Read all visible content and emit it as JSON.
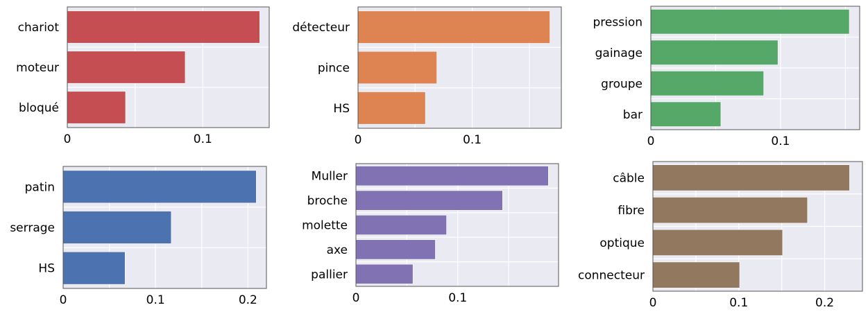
{
  "chart_data": [
    {
      "type": "bar",
      "orientation": "horizontal",
      "color": "#C44E52",
      "categories": [
        "chariot",
        "moteur",
        "bloqué"
      ],
      "values": [
        0.142,
        0.087,
        0.043
      ],
      "xlim": [
        0,
        0.149
      ],
      "xticks": [
        {
          "value": 0,
          "label": "0"
        },
        {
          "value": 0.1,
          "label": "0.1"
        }
      ],
      "grid": true
    },
    {
      "type": "bar",
      "orientation": "horizontal",
      "color": "#DD8452",
      "categories": [
        "détecteur",
        "pince",
        "HS"
      ],
      "values": [
        0.168,
        0.069,
        0.059
      ],
      "xlim": [
        0,
        0.178
      ],
      "xticks": [
        {
          "value": 0,
          "label": "0"
        },
        {
          "value": 0.1,
          "label": "0.1"
        }
      ],
      "grid": true
    },
    {
      "type": "bar",
      "orientation": "horizontal",
      "color": "#55A868",
      "categories": [
        "pression",
        "gainage",
        "groupe",
        "bar"
      ],
      "values": [
        0.153,
        0.098,
        0.087,
        0.054
      ],
      "xlim": [
        0,
        0.161
      ],
      "xticks": [
        {
          "value": 0,
          "label": "0"
        },
        {
          "value": 0.1,
          "label": "0.1"
        }
      ],
      "grid": true
    },
    {
      "type": "bar",
      "orientation": "horizontal",
      "color": "#4C72B0",
      "categories": [
        "patin",
        "serrage",
        "HS"
      ],
      "values": [
        0.209,
        0.117,
        0.067
      ],
      "xlim": [
        0,
        0.22
      ],
      "xticks": [
        {
          "value": 0,
          "label": "0"
        },
        {
          "value": 0.1,
          "label": "0.1"
        },
        {
          "value": 0.2,
          "label": "0.2"
        }
      ],
      "grid": true
    },
    {
      "type": "bar",
      "orientation": "horizontal",
      "color": "#8172B3",
      "categories": [
        "Muller",
        "broche",
        "molette",
        "axe",
        "pallier"
      ],
      "values": [
        0.189,
        0.144,
        0.089,
        0.078,
        0.056
      ],
      "xlim": [
        0,
        0.199
      ],
      "xticks": [
        {
          "value": 0,
          "label": "0"
        },
        {
          "value": 0.1,
          "label": "0.1"
        }
      ],
      "grid": true
    },
    {
      "type": "bar",
      "orientation": "horizontal",
      "color": "#937860",
      "categories": [
        "câble",
        "fibre",
        "optique",
        "connecteur"
      ],
      "values": [
        0.229,
        0.18,
        0.151,
        0.101
      ],
      "xlim": [
        0,
        0.244
      ],
      "xticks": [
        {
          "value": 0,
          "label": "0"
        },
        {
          "value": 0.1,
          "label": "0.1"
        },
        {
          "value": 0.2,
          "label": "0.2"
        }
      ],
      "grid": true
    }
  ]
}
